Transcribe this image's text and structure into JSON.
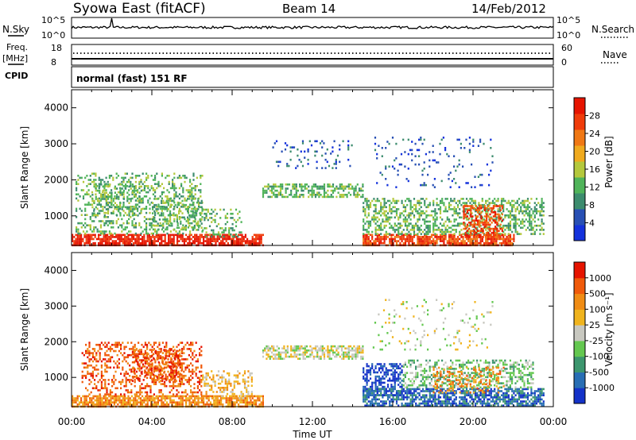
{
  "header": {
    "title": "Syowa East (fitACF)",
    "beam": "Beam 14",
    "date": "14/Feb/2012"
  },
  "top_panels": {
    "nsky_label": "N.Sky",
    "nsky_ticks": [
      "10^5",
      "10^0"
    ],
    "nsearch_label": "N.Search",
    "nsearch_ticks": [
      "10^5",
      "10^0"
    ],
    "freq_label": "Freq.",
    "freq_unit": "[MHz]",
    "freq_ticks": [
      "18",
      "8"
    ],
    "nave_label": "Nave",
    "nave_ticks": [
      "60",
      "0"
    ],
    "cpid_label": "CPID",
    "cpid_text": "normal (fast) 151 RF"
  },
  "colors": {
    "power": [
      "#1432dc",
      "#2850b4",
      "#3c8c6e",
      "#50b45a",
      "#b4c83c",
      "#f0aa1e",
      "#f07814",
      "#f03c0a",
      "#e61400"
    ],
    "velocity": [
      "#1432c8",
      "#286eb4",
      "#3c966e",
      "#64c850",
      "#c8c8c0",
      "#f0b41e",
      "#f08c14",
      "#f05a0a",
      "#e61400"
    ]
  },
  "chart_data": [
    {
      "type": "heatmap",
      "name": "power",
      "x_axis": {
        "label": "Time UT",
        "range_hours": [
          0,
          24
        ],
        "ticks": [
          "00:00",
          "04:00",
          "08:00",
          "12:00",
          "16:00",
          "20:00",
          "00:00"
        ]
      },
      "y_axis": {
        "label": "Slant Range [km]",
        "range_km": [
          180,
          4500
        ],
        "ticks": [
          "1000",
          "2000",
          "3000",
          "4000"
        ]
      },
      "colorbar": {
        "label": "Power [dB]",
        "ticks": [
          "4",
          "8",
          "12",
          "16",
          "20",
          "24",
          "28"
        ],
        "range": [
          0,
          32
        ]
      },
      "regions": [
        {
          "t": [
            0.0,
            9.5
          ],
          "r": [
            200,
            500
          ],
          "level": 8,
          "density": 0.8
        },
        {
          "t": [
            0.2,
            6.5
          ],
          "r": [
            500,
            2200
          ],
          "level": 3,
          "density": 0.3
        },
        {
          "t": [
            1.0,
            3.5
          ],
          "r": [
            1000,
            1900
          ],
          "level": 3,
          "density": 0.4
        },
        {
          "t": [
            4.0,
            6.5
          ],
          "r": [
            600,
            1500
          ],
          "level": 3,
          "density": 0.35
        },
        {
          "t": [
            6.5,
            8.5
          ],
          "r": [
            400,
            1200
          ],
          "level": 3,
          "density": 0.3
        },
        {
          "t": [
            9.5,
            14.5
          ],
          "r": [
            1500,
            1900
          ],
          "level": 3,
          "density": 0.55
        },
        {
          "t": [
            10.0,
            14.0
          ],
          "r": [
            2300,
            3100
          ],
          "level": 1,
          "density": 0.1
        },
        {
          "t": [
            14.5,
            22.0
          ],
          "r": [
            200,
            500
          ],
          "level": 7,
          "density": 0.8
        },
        {
          "t": [
            14.5,
            23.5
          ],
          "r": [
            500,
            1500
          ],
          "level": 3,
          "density": 0.45
        },
        {
          "t": [
            19.5,
            21.5
          ],
          "r": [
            400,
            1300
          ],
          "level": 7,
          "density": 0.5
        },
        {
          "t": [
            15.0,
            21.0
          ],
          "r": [
            1800,
            3200
          ],
          "level": 1,
          "density": 0.08
        }
      ]
    },
    {
      "type": "heatmap",
      "name": "velocity",
      "x_axis": {
        "label": "Time UT",
        "range_hours": [
          0,
          24
        ],
        "ticks": [
          "00:00",
          "04:00",
          "08:00",
          "12:00",
          "16:00",
          "20:00",
          "00:00"
        ]
      },
      "y_axis": {
        "label": "Slant Range [km]",
        "range_km": [
          180,
          4500
        ],
        "ticks": [
          "1000",
          "2000",
          "3000",
          "4000"
        ]
      },
      "colorbar": {
        "label": "Velocity [m s⁻¹]",
        "ticks": [
          "1000",
          "500",
          "100",
          "25",
          "-25",
          "-100",
          "-500",
          "-1000"
        ],
        "range": [
          1250,
          -1250
        ]
      },
      "regions": [
        {
          "t": [
            0.0,
            9.5
          ],
          "r": [
            200,
            500
          ],
          "level": 6,
          "density": 0.8
        },
        {
          "t": [
            0.5,
            6.5
          ],
          "r": [
            500,
            2000
          ],
          "level": 7,
          "density": 0.35
        },
        {
          "t": [
            3.0,
            5.5
          ],
          "r": [
            900,
            1800
          ],
          "level": 7,
          "density": 0.45
        },
        {
          "t": [
            6.5,
            9.0
          ],
          "r": [
            400,
            1200
          ],
          "level": 5,
          "density": 0.35
        },
        {
          "t": [
            9.5,
            14.5
          ],
          "r": [
            1500,
            1900
          ],
          "level": 4,
          "density": 0.6
        },
        {
          "t": [
            14.5,
            16.5
          ],
          "r": [
            500,
            1400
          ],
          "level": 0,
          "density": 0.55
        },
        {
          "t": [
            14.5,
            23.5
          ],
          "r": [
            200,
            700
          ],
          "level": 1,
          "density": 0.7
        },
        {
          "t": [
            16.5,
            23.0
          ],
          "r": [
            700,
            1500
          ],
          "level": 3,
          "density": 0.45
        },
        {
          "t": [
            18.0,
            21.5
          ],
          "r": [
            600,
            1300
          ],
          "level": 6,
          "density": 0.3
        },
        {
          "t": [
            15.0,
            21.0
          ],
          "r": [
            1800,
            3200
          ],
          "level": 4,
          "density": 0.08
        }
      ]
    }
  ]
}
